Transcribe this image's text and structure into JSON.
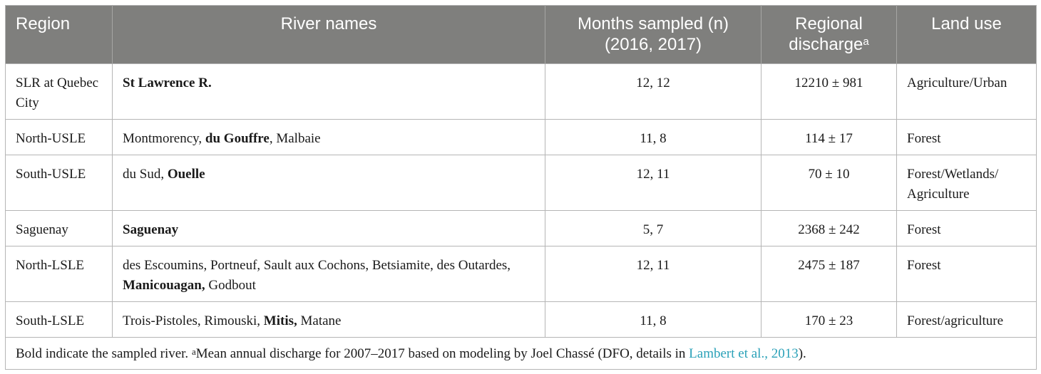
{
  "headers": [
    {
      "text": "Region",
      "sup": ""
    },
    {
      "text": "River names",
      "sup": ""
    },
    {
      "text": "Months sampled (n) (2016, 2017)",
      "sup": ""
    },
    {
      "text": "Regional discharge",
      "sup": "a"
    },
    {
      "text": "Land use",
      "sup": ""
    }
  ],
  "rows": [
    {
      "region": "SLR at Quebec City",
      "rivers": [
        {
          "text": "St Lawrence R.",
          "bold": true
        }
      ],
      "months": "12, 12",
      "discharge": "12210 ± 981",
      "land_use": "Agriculture/Urban"
    },
    {
      "region": "North-USLE",
      "rivers": [
        {
          "text": "Montmorency, ",
          "bold": false
        },
        {
          "text": "du Gouffre",
          "bold": true
        },
        {
          "text": ", Malbaie",
          "bold": false
        }
      ],
      "months": "11, 8",
      "discharge": "114 ± 17",
      "land_use": "Forest"
    },
    {
      "region": "South-USLE",
      "rivers": [
        {
          "text": "du Sud, ",
          "bold": false
        },
        {
          "text": "Ouelle",
          "bold": true
        }
      ],
      "months": "12, 11",
      "discharge": "70 ± 10",
      "land_use": "Forest/Wetlands/ Agriculture"
    },
    {
      "region": "Saguenay",
      "rivers": [
        {
          "text": "Saguenay",
          "bold": true
        }
      ],
      "months": "5, 7",
      "discharge": "2368 ± 242",
      "land_use": "Forest"
    },
    {
      "region": "North-LSLE",
      "rivers": [
        {
          "text": "des Escoumins, Portneuf, Sault aux Cochons, Betsiamite, des Outardes, ",
          "bold": false
        },
        {
          "text": "Manicouagan,",
          "bold": true
        },
        {
          "text": " Godbout",
          "bold": false
        }
      ],
      "months": "12, 11",
      "discharge": "2475 ± 187",
      "land_use": "Forest"
    },
    {
      "region": "South-LSLE",
      "rivers": [
        {
          "text": "Trois-Pistoles, Rimouski, ",
          "bold": false
        },
        {
          "text": "Mitis,",
          "bold": true
        },
        {
          "text": " Matane",
          "bold": false
        }
      ],
      "months": "11, 8",
      "discharge": "170 ± 23",
      "land_use": "Forest/agriculture"
    }
  ],
  "footnote": {
    "prefix": "Bold indicate the sampled river. ",
    "sup": "a",
    "text": "Mean annual discharge for 2007–2017 based on modeling by Joel Chassé (DFO, details in ",
    "link": "Lambert et al., 2013",
    "suffix": ")."
  },
  "colors": {
    "header_bg": "#7f7f7d",
    "link": "#2aa1b8"
  }
}
